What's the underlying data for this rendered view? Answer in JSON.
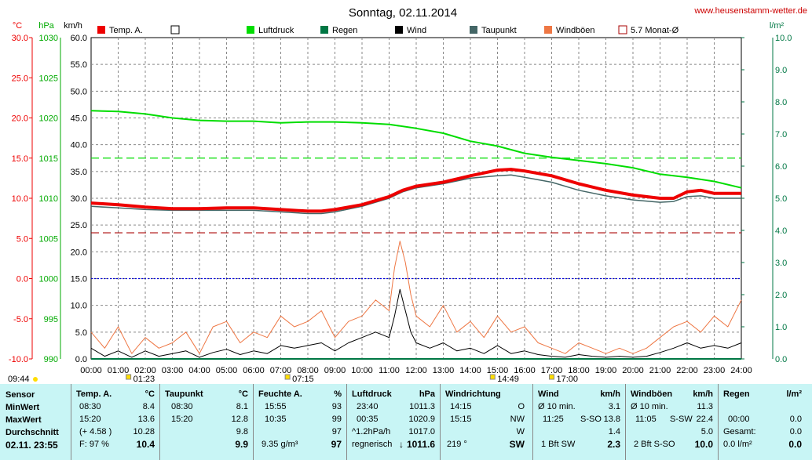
{
  "title": "Sonntag, 02.11.2014",
  "website": "www.heusenstamm-wetter.de",
  "colors": {
    "temp": "#ee0000",
    "luftdruck": "#00dd00",
    "regen": "#007744",
    "wind": "#000000",
    "taupunkt": "#446666",
    "windboen": "#ee7744",
    "monat": "#aa0000",
    "grid": "#888888",
    "blueline": "#0000dd",
    "panel": "#c8f5f5"
  },
  "axes": {
    "temp_unit": "°C",
    "hpa_unit": "hPa",
    "kmh_unit": "km/h",
    "rain_unit": "l/m²",
    "temp_ticks": [
      "30.0",
      "25.0",
      "20.0",
      "15.0",
      "10.0",
      "5.0",
      "0.0",
      "-5.0",
      "-10.0"
    ],
    "hpa_ticks": [
      "1030",
      "1025",
      "1020",
      "1015",
      "1010",
      "1005",
      "1000",
      "995",
      "990"
    ],
    "kmh_ticks": [
      "60.0",
      "55.0",
      "50.0",
      "45.0",
      "40.0",
      "35.0",
      "30.0",
      "25.0",
      "20.0",
      "15.0",
      "10.0",
      "5.0",
      "0.0"
    ],
    "rain_ticks": [
      "10.0",
      "9.0",
      "8.0",
      "7.0",
      "6.0",
      "5.0",
      "4.0",
      "3.0",
      "2.0",
      "1.0",
      "0.0"
    ],
    "time_ticks": [
      "00:00",
      "01:00",
      "02:00",
      "03:00",
      "04:00",
      "05:00",
      "06:00",
      "07:00",
      "08:00",
      "09:00",
      "10:00",
      "11:00",
      "12:00",
      "13:00",
      "14:00",
      "15:00",
      "16:00",
      "17:00",
      "18:00",
      "19:00",
      "20:00",
      "21:00",
      "22:00",
      "23:00",
      "24:00"
    ]
  },
  "legend": [
    "Temp. A.",
    "Luftdruck",
    "Regen",
    "Wind",
    "Taupunkt",
    "Windböen",
    "5.7 Monat-Ø"
  ],
  "markers": [
    {
      "label": "09:44",
      "hour": -1.3
    },
    {
      "label": "01:23",
      "hour": 1.38
    },
    {
      "label": "07:15",
      "hour": 7.25
    },
    {
      "label": "14:49",
      "hour": 14.82
    },
    {
      "label": "17:00",
      "hour": 17.0
    }
  ],
  "chart_data": {
    "type": "line",
    "x_unit": "hour of day",
    "xlim": [
      0,
      24
    ],
    "series": [
      {
        "name": "Temp. A.",
        "axis": "°C",
        "ylim": [
          -10,
          30
        ],
        "x": [
          0,
          1,
          2,
          3,
          4,
          5,
          6,
          7,
          8,
          8.5,
          9,
          10,
          11,
          11.5,
          12,
          13,
          14,
          15,
          15.5,
          16,
          17,
          18,
          19,
          20,
          21,
          21.5,
          22,
          22.5,
          23,
          24
        ],
        "y": [
          9.4,
          9.2,
          8.9,
          8.7,
          8.7,
          8.8,
          8.8,
          8.6,
          8.4,
          8.4,
          8.6,
          9.2,
          10.2,
          11.0,
          11.5,
          12.0,
          12.8,
          13.5,
          13.6,
          13.4,
          12.8,
          11.8,
          11.0,
          10.4,
          10.0,
          10.0,
          10.8,
          11.0,
          10.6,
          10.6
        ]
      },
      {
        "name": "Taupunkt",
        "axis": "°C",
        "ylim": [
          -10,
          30
        ],
        "x": [
          0,
          1,
          2,
          3,
          4,
          5,
          6,
          7,
          8,
          8.5,
          9,
          10,
          11,
          11.5,
          12,
          13,
          14,
          15,
          15.5,
          16,
          17,
          18,
          19,
          20,
          21,
          21.5,
          22,
          22.5,
          23,
          24
        ],
        "y": [
          9.0,
          8.8,
          8.6,
          8.5,
          8.5,
          8.5,
          8.5,
          8.3,
          8.1,
          8.1,
          8.3,
          9.0,
          10.0,
          10.8,
          11.3,
          11.8,
          12.5,
          12.8,
          12.9,
          12.6,
          12.0,
          11.0,
          10.3,
          9.8,
          9.5,
          9.6,
          10.2,
          10.3,
          10.0,
          10.0
        ]
      },
      {
        "name": "Luftdruck",
        "axis": "hPa",
        "ylim": [
          990,
          1030
        ],
        "x": [
          0,
          1,
          2,
          3,
          4,
          5,
          6,
          7,
          8,
          9,
          10,
          11,
          12,
          13,
          14,
          15,
          16,
          17,
          18,
          19,
          20,
          21,
          22,
          23,
          24
        ],
        "y": [
          1020.9,
          1020.8,
          1020.5,
          1020.0,
          1019.7,
          1019.6,
          1019.6,
          1019.4,
          1019.5,
          1019.5,
          1019.4,
          1019.2,
          1018.7,
          1018.1,
          1017.1,
          1016.5,
          1015.6,
          1015.1,
          1014.7,
          1014.3,
          1013.8,
          1013.0,
          1012.6,
          1012.1,
          1011.3
        ]
      },
      {
        "name": "Windböen",
        "axis": "km/h",
        "ylim": [
          0,
          60
        ],
        "x": [
          0,
          0.5,
          1,
          1.5,
          2,
          2.5,
          3,
          3.5,
          4,
          4.5,
          5,
          5.5,
          6,
          6.5,
          7,
          7.5,
          8,
          8.5,
          9,
          9.5,
          10,
          10.5,
          11,
          11.2,
          11.4,
          11.6,
          11.8,
          12,
          12.5,
          13,
          13.5,
          14,
          14.5,
          15,
          15.5,
          16,
          16.5,
          17,
          17.5,
          18,
          18.5,
          19,
          19.5,
          20,
          20.5,
          21,
          21.5,
          22,
          22.5,
          23,
          23.5,
          24
        ],
        "y": [
          5,
          2,
          6,
          1,
          4,
          2,
          3,
          5,
          1,
          6,
          7,
          3,
          5,
          4,
          8,
          6,
          7,
          9,
          4,
          7,
          8,
          11,
          9,
          17,
          22,
          18,
          12,
          8,
          6,
          10,
          5,
          7,
          4,
          8,
          5,
          6,
          3,
          2,
          1,
          3,
          2,
          1,
          2,
          1,
          2,
          4,
          6,
          7,
          5,
          8,
          6,
          11
        ]
      },
      {
        "name": "Wind",
        "axis": "km/h",
        "ylim": [
          0,
          60
        ],
        "x": [
          0,
          0.5,
          1,
          1.5,
          2,
          2.5,
          3,
          3.5,
          4,
          4.5,
          5,
          5.5,
          6,
          6.5,
          7,
          7.5,
          8,
          8.5,
          9,
          9.5,
          10,
          10.5,
          11,
          11.2,
          11.4,
          11.6,
          11.8,
          12,
          12.5,
          13,
          13.5,
          14,
          14.5,
          15,
          15.5,
          16,
          16.5,
          17,
          17.5,
          18,
          18.5,
          19,
          19.5,
          20,
          20.5,
          21,
          21.5,
          22,
          22.5,
          23,
          23.5,
          24
        ],
        "y": [
          2,
          0.5,
          1.5,
          0.3,
          1.5,
          0.5,
          1,
          1.5,
          0.3,
          1.2,
          1.8,
          0.8,
          1.5,
          1,
          2.5,
          2,
          2.5,
          3,
          1.5,
          3,
          4,
          5,
          4,
          8,
          13,
          9,
          5,
          3,
          2,
          3,
          1.5,
          2,
          1,
          2.5,
          1,
          1.5,
          0.8,
          0.5,
          0.3,
          0.8,
          0.5,
          0.3,
          0.5,
          0.3,
          0.5,
          1.2,
          2,
          3,
          2,
          2.5,
          2,
          3
        ]
      },
      {
        "name": "Regen",
        "axis": "l/m²",
        "ylim": [
          0,
          10
        ],
        "x": [
          0,
          24
        ],
        "y": [
          0,
          0
        ]
      }
    ],
    "reference_lines": [
      {
        "name": "5.7 Monat-Ø",
        "axis": "°C",
        "value": 5.7
      },
      {
        "name": "Luftdruck ref",
        "axis": "hPa",
        "value": 1015
      },
      {
        "name": "0 °C",
        "axis": "°C",
        "value": 0
      }
    ],
    "grid": true,
    "legend_position": "top"
  },
  "panel": {
    "sensor": {
      "header": "Sensor",
      "min": "MinWert",
      "max": "MaxWert",
      "avg": "Durchschnitt",
      "date": "02.11. 23:55"
    },
    "temp": {
      "header": "Temp. A.",
      "unit": "°C",
      "min_t": "08:30",
      "min_v": "8.4",
      "max_t": "15:20",
      "max_v": "13.6",
      "avg_note": "(+ 4.58 )",
      "avg_v": "10.28",
      "cur_note": "F: 97 %",
      "cur_v": "10.4"
    },
    "taupunkt": {
      "header": "Taupunkt",
      "unit": "°C",
      "min_t": "08:30",
      "min_v": "8.1",
      "max_t": "15:20",
      "max_v": "12.8",
      "avg_v": "9.8",
      "cur_v": "9.9"
    },
    "feuchte": {
      "header": "Feuchte A.",
      "unit": "%",
      "min_t": "15:55",
      "min_v": "93",
      "max_t": "10:35",
      "max_v": "99",
      "avg_v": "97",
      "cur_note": "9.35 g/m³",
      "cur_v": "97"
    },
    "luftdruck": {
      "header": "Luftdruck",
      "unit": "hPa",
      "min_t": "23:40",
      "min_v": "1011.3",
      "max_t": "00:35",
      "max_v": "1020.9",
      "avg_note": "^1.2hPa/h",
      "avg_v": "1017.0",
      "cur_note": "regnerisch",
      "cur_arrow": "↓",
      "cur_v": "1011.6"
    },
    "windrichtung": {
      "header": "Windrichtung",
      "min_t": "14:15",
      "min_v": "O",
      "max_t": "15:15",
      "max_v": "NW",
      "avg_v": "W",
      "cur_note": "219 °",
      "cur_v": "SW"
    },
    "wind": {
      "header": "Wind",
      "unit": "km/h",
      "min_t": "Ø 10 min.",
      "min_v": "3.1",
      "max_t": "11:25",
      "max_dir": "S-SO",
      "max_v": "13.8",
      "avg_v": "1.4",
      "cur_note": "1 Bft SW",
      "cur_v": "2.3"
    },
    "windboen": {
      "header": "Windböen",
      "unit": "km/h",
      "min_t": "Ø 10 min.",
      "min_v": "11.3",
      "max_t": "11:05",
      "max_dir": "S-SW",
      "max_v": "22.4",
      "avg_v": "5.0",
      "cur_note": "2 Bft S-SO",
      "cur_v": "10.0"
    },
    "regen": {
      "header": "Regen",
      "unit": "l/m²",
      "max_t": "00:00",
      "max_v": "0.0",
      "avg_note": "Gesamt:",
      "avg_v": "0.0",
      "cur_note": "0.0 l/m²",
      "cur_v": "0.0"
    }
  }
}
